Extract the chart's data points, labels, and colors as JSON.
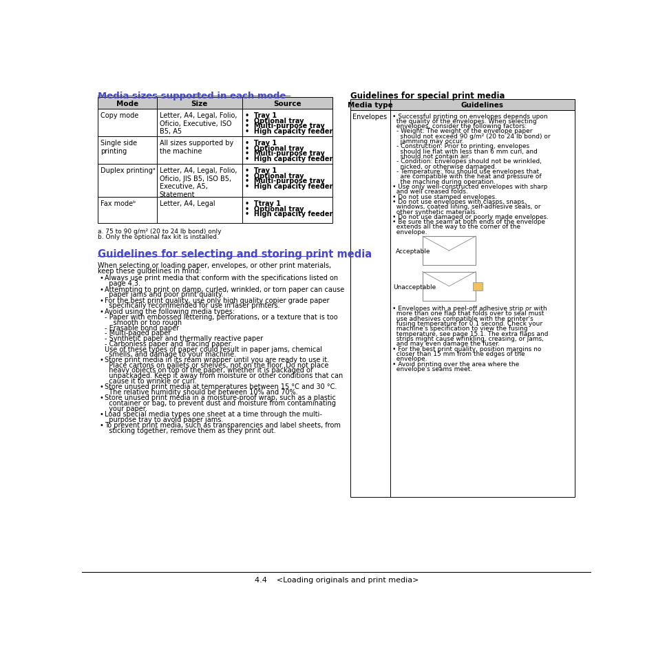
{
  "page_bg": "#ffffff",
  "blue_heading_color": "#4444cc",
  "black_color": "#000000",
  "gray_header_bg": "#d0d0d0",
  "border_color": "#000000",
  "section1_title": "Media sizes supported in each mode",
  "table1_headers": [
    "Mode",
    "Size",
    "Source"
  ],
  "table1_rows": [
    {
      "mode": "Copy mode",
      "size": "Letter, A4, Legal, Folio,\nOficio, Executive, ISO\nB5, A5",
      "source": "•  Tray 1\n•  Optional tray\n•  Multi-purpose tray\n•  High capacity feeder"
    },
    {
      "mode": "Single side\nprinting",
      "size": "All sizes supported by\nthe machine",
      "source": "•  Tray 1\n•  Optional tray\n•  Multi-purpose tray\n•  High capacity feeder"
    },
    {
      "mode": "Duplex printingᵃ",
      "size": "Letter, A4, Legal, Folio,\nOficio, JIS B5, ISO B5,\nExecutive, A5,\nStatement",
      "source": "•  Tray 1\n•  Optional tray\n•  Multi-purpose tray\n•  High capacity feeder"
    },
    {
      "mode": "Fax modeᵇ",
      "size": "Letter, A4, Legal",
      "source": "•  Ttray 1\n•  Optional tray\n•  High capacity feeder"
    }
  ],
  "footnotes": [
    "a. 75 to 90 g/m² (20 to 24 lb bond) only",
    "b. Only the optional fax kit is installed."
  ],
  "section2_title": "Guidelines for selecting and storing print media",
  "section2_intro": "When selecting or loading paper, envelopes, or other print materials,\nkeep these guidelines in mind:",
  "section2_bullets": [
    "Always use print media that conform with the specifications listed on\npage 4.3.",
    "Attempting to print on damp, curled, wrinkled, or torn paper can cause\npaper jams and poor print quality.",
    "For the best print quality, use only high quality copier grade paper\nspecifically recommended for use in laser printers.",
    "Avoid using the following media types:",
    "- Paper with embossed lettering, perforations, or a texture that is too\n  smooth or too rough",
    "- Erasable bond paper",
    "- Multi-paged paper",
    "- Synthetic paper and thermally reactive paper",
    "- Carbonless paper and Tracing paper.",
    "  Use of these types of paper could result in paper jams, chemical\n  smells, and damage to your machine.",
    "Store print media in its ream wrapper until you are ready to use it.\nPlace cartons on pallets or shelves, not on the floor. Do not place\nheavy objects on top of the paper, whether it is packaged or\nunpackaged. Keep it away from moisture or other conditions that can\ncause it to wrinkle or curl.",
    "Store unused print media at temperatures between 15 °C and 30 °C.\nThe relative humidity should be between 10% and 70%.",
    "Store unused print media in a moisture-proof wrap, such as a plastic\ncontainer or bag, to prevent dust and moisture from contaminating\nyour paper.",
    "Load special media types one sheet at a time through the multi-\npurpose tray to avoid paper jams.",
    "To prevent print media, such as transparencies and label sheets, from\nsticking together, remove them as they print out."
  ],
  "right_section_title": "Guidelines for special print media",
  "right_table_headers": [
    "Media type",
    "Guidelines"
  ],
  "right_table_envelopes_title": "Envelopes",
  "right_table_envelopes_text": [
    "• Successful printing on envelopes depends upon\n  the quality of the envelopes. When selecting\n  envelopes, consider the following factors:",
    "  - Weight: The weight of the envelope paper\n    should not exceed 90 g/m² (20 to 24 lb bond) or\n    jamming may occur.",
    "  - Construction: Prior to printing, envelopes\n    should lie flat with less than 6 mm curl, and\n    should not contain air.",
    "  - Condition: Envelopes should not be wrinkled,\n    nicked, or otherwise damaged.",
    "  - Temperature: You should use envelopes that\n    are compatible with the heat and pressure of\n    the machine during operation.",
    "• Use only well-constructed envelopes with sharp\n  and well creased folds.",
    "• Do not use stamped envelopes.",
    "• Do not use envelopes with clasps, snaps,\n  windows, coated lining, self-adhesive seals, or\n  other synthetic materials.",
    "• Do not use damaged or poorly made envelopes.",
    "• Be sure the seam at both ends of the envelope\n  extends all the way to the corner of the\n  envelope.",
    "• Envelopes with a peel-off adhesive strip or with\n  more than one flap that folds over to seal must\n  use adhesives compatible with the printer's\n  fusing temperature for 0.1 second. Check your\n  machine's specification to view the fusing\n  temperature, see page 15.1. The extra flaps and\n  strips might cause wrinkling, creasing, or jams,\n  and may even damage the fuser.",
    "• For the best print quality, position margins no\n  closer than 15 mm from the edges of the\n  envelope.",
    "• Avoid printing over the area where the\n  envelope's seams meet."
  ],
  "footer_text": "4.4    <Loading originals and print media>"
}
